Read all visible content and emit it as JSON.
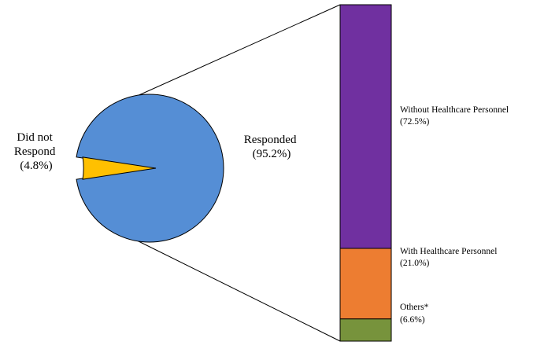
{
  "chart_data": {
    "type": "bar-of-pie",
    "pie": {
      "slices": [
        {
          "label_lines": [
            "Responded",
            "(95.2%)"
          ],
          "value": 95.2,
          "color": "#558ED5"
        },
        {
          "label_lines": [
            "Did not",
            "Respond",
            "(4.8%)"
          ],
          "value": 4.8,
          "color": "#FFC000"
        }
      ]
    },
    "bar": {
      "segments": [
        {
          "label_lines": [
            "Without Healthcare Personnel",
            "(72.5%)"
          ],
          "value": 72.5,
          "color": "#7030A0"
        },
        {
          "label_lines": [
            "With Healthcare Personnel",
            "(21.0%)"
          ],
          "value": 21.0,
          "color": "#ED7D31"
        },
        {
          "label_lines": [
            "Others*",
            "(6.6%)"
          ],
          "value": 6.6,
          "color": "#77933C"
        }
      ]
    }
  }
}
